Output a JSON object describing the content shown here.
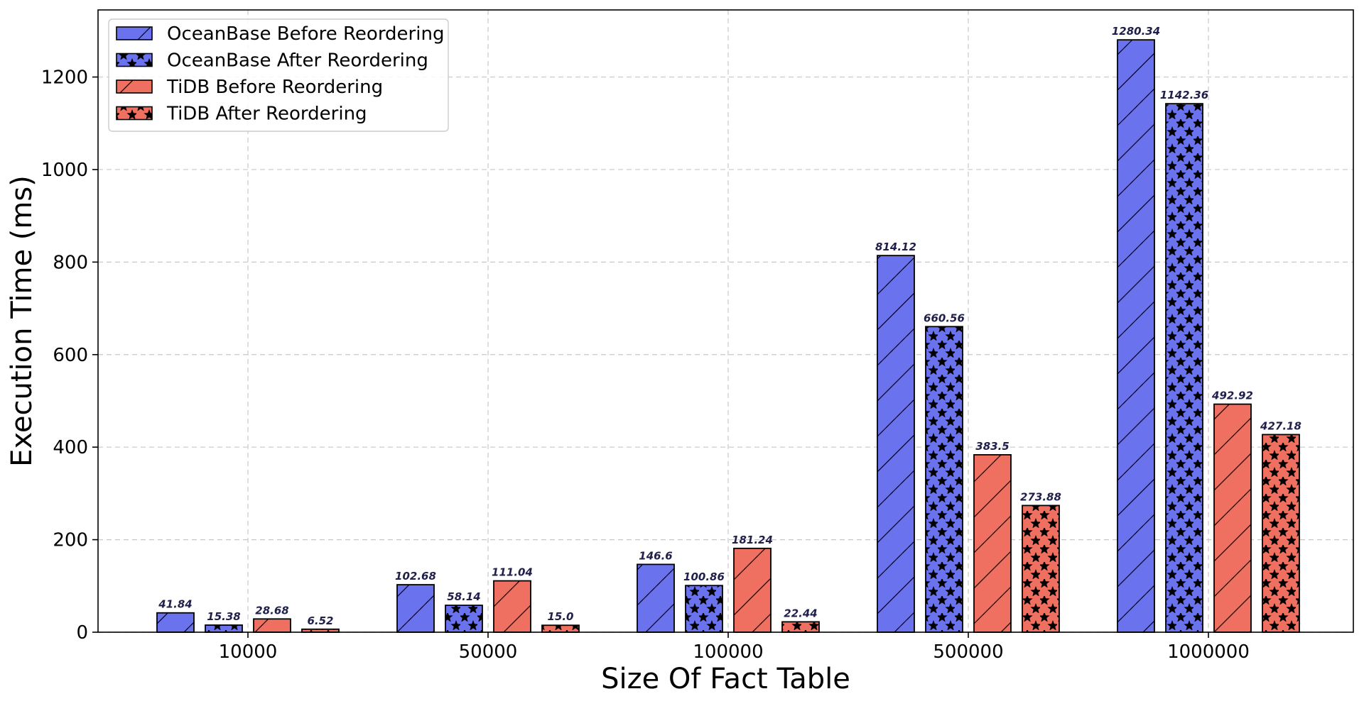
{
  "chart_data": {
    "type": "bar",
    "categories": [
      "10000",
      "50000",
      "100000",
      "500000",
      "1000000"
    ],
    "xlabel": "Size Of Fact Table",
    "ylabel": "Execution Time (ms)",
    "ylim": [
      0,
      1345
    ],
    "yticks": [
      0,
      200,
      400,
      600,
      800,
      1000,
      1200
    ],
    "grid": true,
    "legend_position": "top-left",
    "series": [
      {
        "name": "OceanBase Before Reordering",
        "color": "#6b72ee",
        "pattern": "diagonal-hatch",
        "values": [
          41.84,
          102.68,
          146.6,
          814.12,
          1280.34
        ]
      },
      {
        "name": "OceanBase After Reordering",
        "color": "#6b72ee",
        "pattern": "star-hatch",
        "values": [
          15.38,
          58.14,
          100.86,
          660.56,
          1142.36
        ]
      },
      {
        "name": "TiDB Before Reordering",
        "color": "#ef6f60",
        "pattern": "diagonal-hatch",
        "values": [
          28.68,
          111.04,
          181.24,
          383.5,
          492.92
        ]
      },
      {
        "name": "TiDB After Reordering",
        "color": "#ef6f60",
        "pattern": "star-hatch",
        "values": [
          6.52,
          15.0,
          22.44,
          273.88,
          427.18
        ]
      }
    ],
    "value_labels": [
      [
        "41.84",
        "102.68",
        "146.6",
        "814.12",
        "1280.34"
      ],
      [
        "15.38",
        "58.14",
        "100.86",
        "660.56",
        "1142.36"
      ],
      [
        "28.68",
        "111.04",
        "181.24",
        "383.5",
        "492.92"
      ],
      [
        "6.52",
        "15.0",
        "22.44",
        "273.88",
        "427.18"
      ]
    ],
    "value_label_color": "#1f1f4a"
  }
}
